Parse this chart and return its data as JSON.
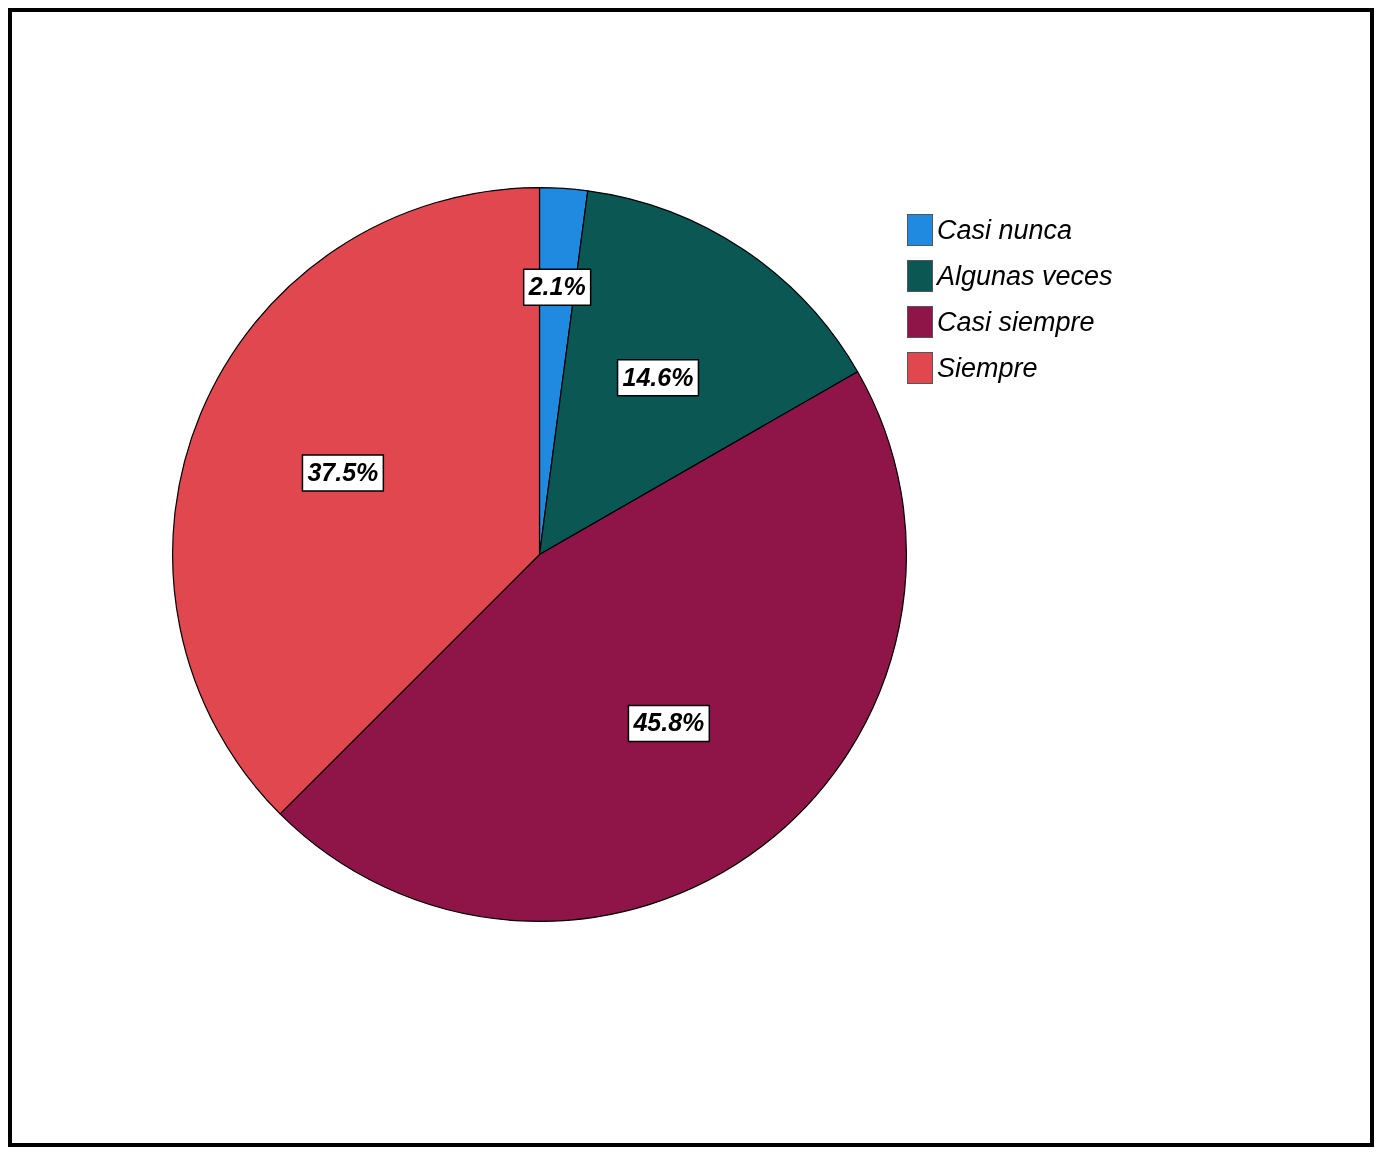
{
  "chart_data": {
    "type": "pie",
    "categories": [
      "Casi nunca",
      "Algunas veces",
      "Casi siempre",
      "Siempre"
    ],
    "values": [
      2.1,
      14.6,
      45.8,
      37.5
    ],
    "colors": [
      "#1f8ae0",
      "#0b5754",
      "#8f1549",
      "#e1474e"
    ],
    "value_labels": [
      "2.1%",
      "14.6%",
      "45.8%",
      "37.5%"
    ],
    "legend": "top right"
  }
}
